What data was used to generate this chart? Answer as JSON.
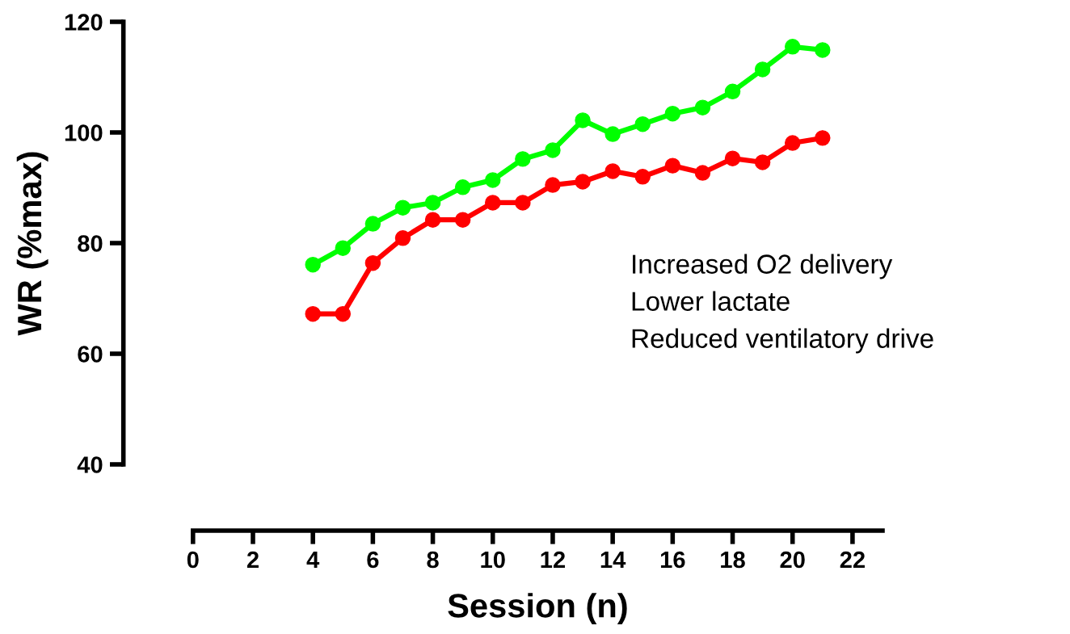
{
  "chart_data": {
    "type": "line",
    "xlabel": "Session (n)",
    "ylabel": "WR (%max)",
    "xlim": [
      0,
      23
    ],
    "xticks": [
      0,
      2,
      4,
      6,
      8,
      10,
      12,
      14,
      16,
      18,
      20,
      22
    ],
    "ylim": [
      40,
      120
    ],
    "yticks": [
      40,
      60,
      80,
      100,
      120
    ],
    "marker": "circle",
    "line_style": "solid",
    "grid": false,
    "legend": false,
    "x": [
      4,
      5,
      6,
      7,
      8,
      9,
      10,
      11,
      12,
      13,
      14,
      15,
      16,
      17,
      18,
      19,
      20,
      21
    ],
    "series": [
      {
        "color": "#00ff00",
        "values": [
          76.1,
          79.1,
          83.5,
          86.4,
          87.3,
          90.1,
          91.4,
          95.2,
          96.8,
          102.2,
          99.7,
          101.5,
          103.4,
          104.5,
          107.4,
          111.4,
          115.5,
          114.9
        ]
      },
      {
        "color": "#ff0000",
        "values": [
          67.2,
          67.2,
          76.4,
          80.9,
          84.2,
          84.2,
          87.3,
          87.3,
          90.5,
          91.1,
          93.0,
          92.0,
          94.0,
          92.7,
          95.3,
          94.6,
          98.1,
          99.0
        ]
      }
    ],
    "annotations": [
      "Increased O2 delivery",
      "Lower lactate",
      "Reduced ventilatory drive"
    ]
  }
}
